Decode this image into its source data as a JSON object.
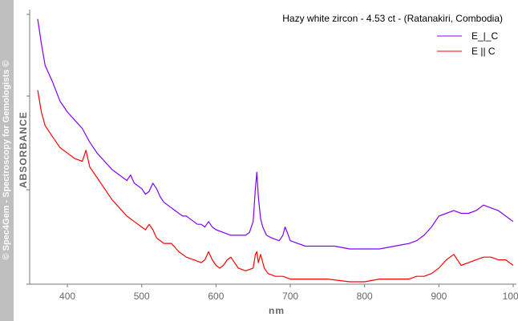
{
  "watermark": "© Spec4Gem - Spectroscopy for Gemologists ©",
  "chart_data": {
    "type": "line",
    "title": "Hazy white zircon - 4.53 ct - (Ratanakiri, Combodia)",
    "xlabel": "nm",
    "ylabel": "ABSORBANCE",
    "xlim": [
      360,
      1000
    ],
    "ylim": [
      0,
      1
    ],
    "x_ticks": [
      400,
      500,
      600,
      700,
      800,
      900,
      1000
    ],
    "x_tick_labels": [
      "400",
      "500",
      "600",
      "700",
      "800",
      "900",
      "1000"
    ],
    "y_tick_labels_shown": false,
    "grid": false,
    "legend_position": "top-right",
    "series": [
      {
        "name": "E_|_C",
        "color": "#8000ff",
        "points": [
          [
            360,
            0.96
          ],
          [
            365,
            0.87
          ],
          [
            370,
            0.79
          ],
          [
            380,
            0.73
          ],
          [
            390,
            0.66
          ],
          [
            400,
            0.62
          ],
          [
            410,
            0.59
          ],
          [
            420,
            0.56
          ],
          [
            430,
            0.51
          ],
          [
            440,
            0.47
          ],
          [
            450,
            0.44
          ],
          [
            460,
            0.41
          ],
          [
            470,
            0.39
          ],
          [
            480,
            0.37
          ],
          [
            485,
            0.39
          ],
          [
            490,
            0.36
          ],
          [
            500,
            0.34
          ],
          [
            505,
            0.32
          ],
          [
            510,
            0.33
          ],
          [
            515,
            0.36
          ],
          [
            520,
            0.34
          ],
          [
            525,
            0.31
          ],
          [
            530,
            0.29
          ],
          [
            535,
            0.28
          ],
          [
            540,
            0.27
          ],
          [
            545,
            0.26
          ],
          [
            550,
            0.25
          ],
          [
            555,
            0.24
          ],
          [
            560,
            0.24
          ],
          [
            565,
            0.23
          ],
          [
            570,
            0.22
          ],
          [
            575,
            0.21
          ],
          [
            580,
            0.21
          ],
          [
            585,
            0.2
          ],
          [
            590,
            0.22
          ],
          [
            595,
            0.2
          ],
          [
            600,
            0.19
          ],
          [
            610,
            0.18
          ],
          [
            620,
            0.17
          ],
          [
            630,
            0.17
          ],
          [
            640,
            0.17
          ],
          [
            645,
            0.18
          ],
          [
            650,
            0.22
          ],
          [
            653,
            0.34
          ],
          [
            655,
            0.4
          ],
          [
            657,
            0.31
          ],
          [
            660,
            0.23
          ],
          [
            663,
            0.2
          ],
          [
            668,
            0.17
          ],
          [
            675,
            0.16
          ],
          [
            685,
            0.15
          ],
          [
            690,
            0.17
          ],
          [
            693,
            0.2
          ],
          [
            696,
            0.18
          ],
          [
            700,
            0.15
          ],
          [
            710,
            0.14
          ],
          [
            720,
            0.13
          ],
          [
            740,
            0.13
          ],
          [
            760,
            0.13
          ],
          [
            780,
            0.12
          ],
          [
            800,
            0.12
          ],
          [
            820,
            0.12
          ],
          [
            840,
            0.13
          ],
          [
            860,
            0.14
          ],
          [
            870,
            0.15
          ],
          [
            880,
            0.17
          ],
          [
            890,
            0.2
          ],
          [
            900,
            0.24
          ],
          [
            910,
            0.25
          ],
          [
            920,
            0.26
          ],
          [
            930,
            0.25
          ],
          [
            940,
            0.25
          ],
          [
            950,
            0.26
          ],
          [
            960,
            0.28
          ],
          [
            970,
            0.27
          ],
          [
            980,
            0.26
          ],
          [
            990,
            0.24
          ],
          [
            1000,
            0.22
          ]
        ]
      },
      {
        "name": "E || C",
        "color": "#ff0000",
        "points": [
          [
            360,
            0.7
          ],
          [
            365,
            0.62
          ],
          [
            370,
            0.57
          ],
          [
            380,
            0.53
          ],
          [
            390,
            0.49
          ],
          [
            400,
            0.47
          ],
          [
            410,
            0.45
          ],
          [
            420,
            0.44
          ],
          [
            425,
            0.48
          ],
          [
            430,
            0.42
          ],
          [
            440,
            0.38
          ],
          [
            450,
            0.34
          ],
          [
            460,
            0.3
          ],
          [
            470,
            0.27
          ],
          [
            480,
            0.24
          ],
          [
            490,
            0.22
          ],
          [
            500,
            0.2
          ],
          [
            505,
            0.19
          ],
          [
            510,
            0.21
          ],
          [
            515,
            0.19
          ],
          [
            520,
            0.16
          ],
          [
            530,
            0.14
          ],
          [
            540,
            0.14
          ],
          [
            550,
            0.11
          ],
          [
            560,
            0.09
          ],
          [
            570,
            0.08
          ],
          [
            580,
            0.07
          ],
          [
            585,
            0.08
          ],
          [
            590,
            0.11
          ],
          [
            595,
            0.08
          ],
          [
            600,
            0.06
          ],
          [
            605,
            0.05
          ],
          [
            610,
            0.06
          ],
          [
            615,
            0.08
          ],
          [
            620,
            0.09
          ],
          [
            625,
            0.07
          ],
          [
            630,
            0.05
          ],
          [
            640,
            0.04
          ],
          [
            650,
            0.05
          ],
          [
            653,
            0.1
          ],
          [
            655,
            0.11
          ],
          [
            657,
            0.07
          ],
          [
            660,
            0.1
          ],
          [
            662,
            0.08
          ],
          [
            665,
            0.05
          ],
          [
            670,
            0.03
          ],
          [
            680,
            0.02
          ],
          [
            690,
            0.02
          ],
          [
            700,
            0.01
          ],
          [
            720,
            0.01
          ],
          [
            750,
            0.01
          ],
          [
            780,
            0.0
          ],
          [
            800,
            0.0
          ],
          [
            820,
            0.01
          ],
          [
            840,
            0.01
          ],
          [
            860,
            0.01
          ],
          [
            870,
            0.02
          ],
          [
            880,
            0.02
          ],
          [
            890,
            0.03
          ],
          [
            900,
            0.05
          ],
          [
            910,
            0.08
          ],
          [
            915,
            0.09
          ],
          [
            920,
            0.1
          ],
          [
            925,
            0.08
          ],
          [
            930,
            0.06
          ],
          [
            940,
            0.07
          ],
          [
            950,
            0.08
          ],
          [
            960,
            0.09
          ],
          [
            970,
            0.09
          ],
          [
            980,
            0.08
          ],
          [
            990,
            0.08
          ],
          [
            1000,
            0.06
          ]
        ]
      }
    ]
  }
}
